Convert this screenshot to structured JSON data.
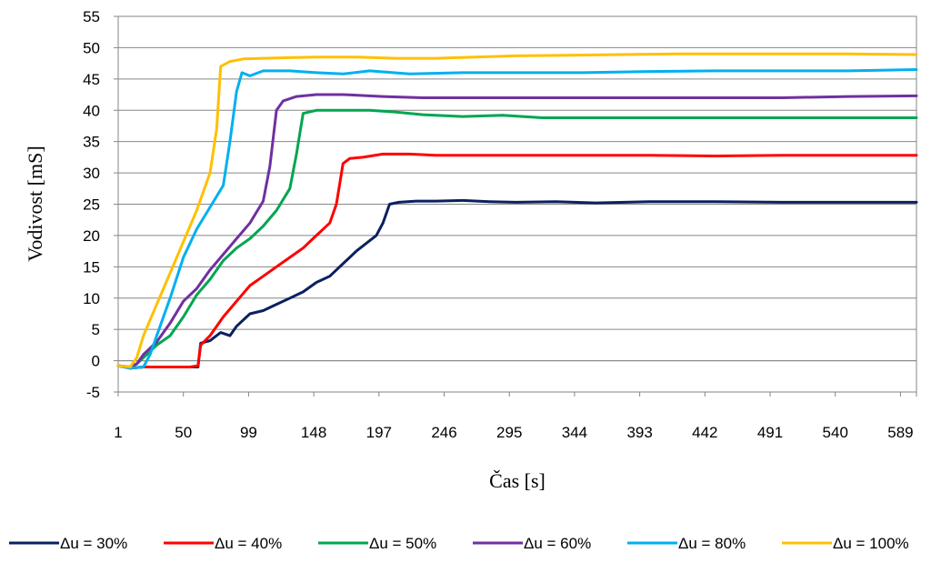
{
  "chart_data": {
    "type": "line",
    "title": "",
    "xlabel": "Čas [s]",
    "ylabel": "Vodivost [mS]",
    "xlim": [
      1,
      601
    ],
    "ylim": [
      -5,
      55
    ],
    "x_ticks": [
      "1",
      "50",
      "99",
      "148",
      "197",
      "246",
      "295",
      "344",
      "393",
      "442",
      "491",
      "540",
      "589"
    ],
    "y_ticks": [
      "-5",
      "0",
      "5",
      "10",
      "15",
      "20",
      "25",
      "30",
      "35",
      "40",
      "45",
      "50",
      "55"
    ],
    "grid": "horizontal",
    "legend_position": "bottom",
    "series": [
      {
        "name": "Δu = 30%",
        "color": "#0b2060",
        "points": [
          [
            1,
            -0.8
          ],
          [
            10,
            -1.2
          ],
          [
            20,
            -1.0
          ],
          [
            40,
            -1.0
          ],
          [
            55,
            -1.0
          ],
          [
            61,
            -1.0
          ],
          [
            63,
            2.8
          ],
          [
            70,
            3.2
          ],
          [
            78,
            4.5
          ],
          [
            85,
            4.0
          ],
          [
            90,
            5.5
          ],
          [
            100,
            7.5
          ],
          [
            110,
            8.0
          ],
          [
            120,
            9.0
          ],
          [
            130,
            10.0
          ],
          [
            140,
            11.0
          ],
          [
            150,
            12.5
          ],
          [
            160,
            13.5
          ],
          [
            170,
            15.5
          ],
          [
            180,
            17.5
          ],
          [
            195,
            20.0
          ],
          [
            200,
            22.0
          ],
          [
            205,
            25.0
          ],
          [
            212,
            25.3
          ],
          [
            225,
            25.5
          ],
          [
            240,
            25.5
          ],
          [
            260,
            25.6
          ],
          [
            280,
            25.4
          ],
          [
            300,
            25.3
          ],
          [
            330,
            25.4
          ],
          [
            360,
            25.2
          ],
          [
            400,
            25.4
          ],
          [
            450,
            25.4
          ],
          [
            500,
            25.3
          ],
          [
            550,
            25.3
          ],
          [
            601,
            25.3
          ]
        ]
      },
      {
        "name": "Δu = 40%",
        "color": "#ff0000",
        "points": [
          [
            1,
            -0.8
          ],
          [
            10,
            -1.2
          ],
          [
            20,
            -1.0
          ],
          [
            40,
            -1.0
          ],
          [
            55,
            -1.0
          ],
          [
            61,
            -0.8
          ],
          [
            63,
            2.5
          ],
          [
            70,
            4.0
          ],
          [
            80,
            7.0
          ],
          [
            90,
            9.5
          ],
          [
            100,
            12.0
          ],
          [
            110,
            13.5
          ],
          [
            120,
            15.0
          ],
          [
            130,
            16.5
          ],
          [
            140,
            18.0
          ],
          [
            150,
            20.0
          ],
          [
            160,
            22.0
          ],
          [
            165,
            25.0
          ],
          [
            170,
            31.5
          ],
          [
            175,
            32.3
          ],
          [
            185,
            32.5
          ],
          [
            200,
            33.0
          ],
          [
            220,
            33.0
          ],
          [
            240,
            32.8
          ],
          [
            270,
            32.8
          ],
          [
            300,
            32.8
          ],
          [
            350,
            32.8
          ],
          [
            400,
            32.8
          ],
          [
            450,
            32.7
          ],
          [
            500,
            32.8
          ],
          [
            550,
            32.8
          ],
          [
            601,
            32.8
          ]
        ]
      },
      {
        "name": "Δu = 50%",
        "color": "#00a650",
        "points": [
          [
            1,
            -0.8
          ],
          [
            10,
            -1.0
          ],
          [
            15,
            -0.5
          ],
          [
            20,
            0.5
          ],
          [
            25,
            1.5
          ],
          [
            30,
            2.5
          ],
          [
            40,
            4.0
          ],
          [
            50,
            7.0
          ],
          [
            60,
            10.5
          ],
          [
            70,
            13.0
          ],
          [
            80,
            16.0
          ],
          [
            90,
            18.0
          ],
          [
            100,
            19.5
          ],
          [
            110,
            21.5
          ],
          [
            120,
            24.0
          ],
          [
            130,
            27.5
          ],
          [
            135,
            33.0
          ],
          [
            140,
            39.5
          ],
          [
            150,
            40.0
          ],
          [
            170,
            40.0
          ],
          [
            190,
            40.0
          ],
          [
            210,
            39.7
          ],
          [
            230,
            39.3
          ],
          [
            260,
            39.0
          ],
          [
            290,
            39.2
          ],
          [
            320,
            38.8
          ],
          [
            360,
            38.8
          ],
          [
            400,
            38.8
          ],
          [
            450,
            38.8
          ],
          [
            500,
            38.8
          ],
          [
            550,
            38.8
          ],
          [
            601,
            38.8
          ]
        ]
      },
      {
        "name": "Δu = 60%",
        "color": "#7030a0",
        "points": [
          [
            1,
            -0.8
          ],
          [
            10,
            -1.0
          ],
          [
            15,
            -0.5
          ],
          [
            20,
            1.0
          ],
          [
            30,
            3.0
          ],
          [
            40,
            6.0
          ],
          [
            50,
            9.5
          ],
          [
            60,
            11.5
          ],
          [
            70,
            14.5
          ],
          [
            80,
            17.0
          ],
          [
            90,
            19.5
          ],
          [
            100,
            22.0
          ],
          [
            110,
            25.5
          ],
          [
            115,
            31.0
          ],
          [
            120,
            40.0
          ],
          [
            125,
            41.5
          ],
          [
            135,
            42.2
          ],
          [
            150,
            42.5
          ],
          [
            170,
            42.5
          ],
          [
            200,
            42.2
          ],
          [
            230,
            42.0
          ],
          [
            260,
            42.0
          ],
          [
            290,
            42.0
          ],
          [
            320,
            42.0
          ],
          [
            360,
            42.0
          ],
          [
            400,
            42.0
          ],
          [
            450,
            42.0
          ],
          [
            500,
            42.0
          ],
          [
            550,
            42.2
          ],
          [
            601,
            42.3
          ]
        ]
      },
      {
        "name": "Δu = 80%",
        "color": "#00b0f0",
        "points": [
          [
            1,
            -0.8
          ],
          [
            10,
            -1.2
          ],
          [
            20,
            -1.0
          ],
          [
            25,
            1.0
          ],
          [
            30,
            4.0
          ],
          [
            40,
            10.0
          ],
          [
            50,
            16.5
          ],
          [
            60,
            21.0
          ],
          [
            70,
            24.5
          ],
          [
            80,
            28.0
          ],
          [
            85,
            35.0
          ],
          [
            90,
            43.0
          ],
          [
            94,
            46.0
          ],
          [
            100,
            45.5
          ],
          [
            110,
            46.3
          ],
          [
            130,
            46.3
          ],
          [
            150,
            46.0
          ],
          [
            170,
            45.8
          ],
          [
            190,
            46.3
          ],
          [
            220,
            45.8
          ],
          [
            260,
            46.0
          ],
          [
            300,
            46.0
          ],
          [
            350,
            46.0
          ],
          [
            400,
            46.2
          ],
          [
            450,
            46.3
          ],
          [
            500,
            46.3
          ],
          [
            550,
            46.3
          ],
          [
            601,
            46.5
          ]
        ]
      },
      {
        "name": "Δu = 100%",
        "color": "#ffc000",
        "points": [
          [
            1,
            -0.8
          ],
          [
            10,
            -1.0
          ],
          [
            15,
            0.5
          ],
          [
            20,
            4.0
          ],
          [
            30,
            9.0
          ],
          [
            40,
            14.0
          ],
          [
            50,
            19.0
          ],
          [
            60,
            24.0
          ],
          [
            70,
            30.0
          ],
          [
            75,
            37.0
          ],
          [
            78,
            47.0
          ],
          [
            85,
            47.8
          ],
          [
            95,
            48.2
          ],
          [
            110,
            48.3
          ],
          [
            130,
            48.4
          ],
          [
            150,
            48.5
          ],
          [
            180,
            48.5
          ],
          [
            210,
            48.3
          ],
          [
            240,
            48.3
          ],
          [
            270,
            48.5
          ],
          [
            300,
            48.7
          ],
          [
            340,
            48.8
          ],
          [
            380,
            48.9
          ],
          [
            420,
            49.0
          ],
          [
            460,
            49.0
          ],
          [
            500,
            49.0
          ],
          [
            550,
            49.0
          ],
          [
            601,
            48.9
          ]
        ]
      }
    ]
  }
}
